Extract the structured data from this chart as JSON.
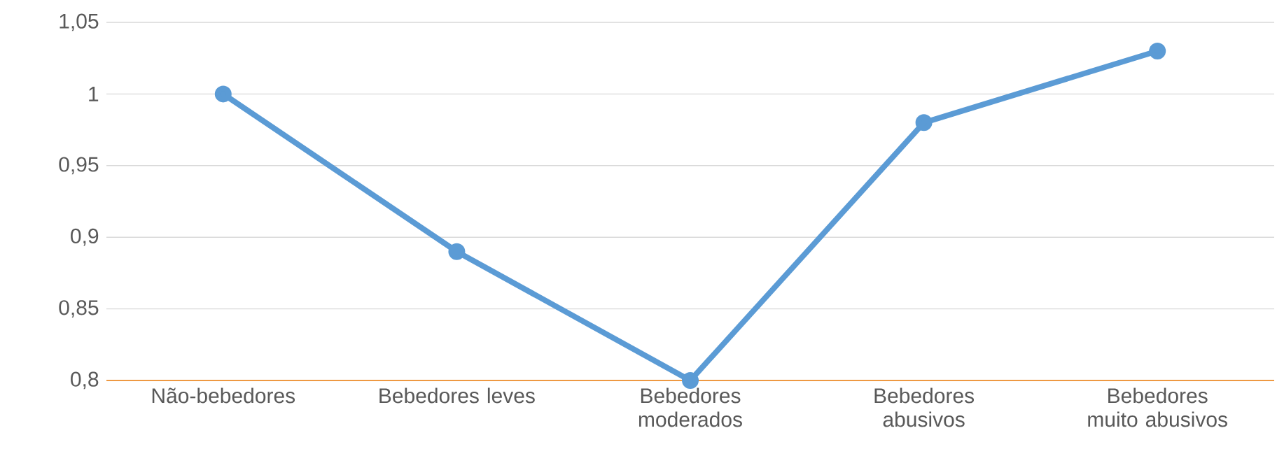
{
  "chart_data": {
    "type": "line",
    "categories": [
      "Não-bebedores",
      "Bebedores leves",
      "Bebedores moderados",
      "Bebedores abusivos",
      "Bebedores muito abusivos"
    ],
    "values": [
      1,
      0.89,
      0.8,
      0.98,
      1.03
    ],
    "color": "#5b9bd5",
    "marker": "circle",
    "line_style": "solid",
    "grid": "y",
    "ylim": [
      0.8,
      1.05
    ],
    "yticks": [
      {
        "value": 0.8,
        "label": "0,8"
      },
      {
        "value": 0.85,
        "label": "0,85"
      },
      {
        "value": 0.9,
        "label": "0,9"
      },
      {
        "value": 0.95,
        "label": "0,95"
      },
      {
        "value": 1,
        "label": "1"
      },
      {
        "value": 1.05,
        "label": "1,05"
      }
    ]
  }
}
